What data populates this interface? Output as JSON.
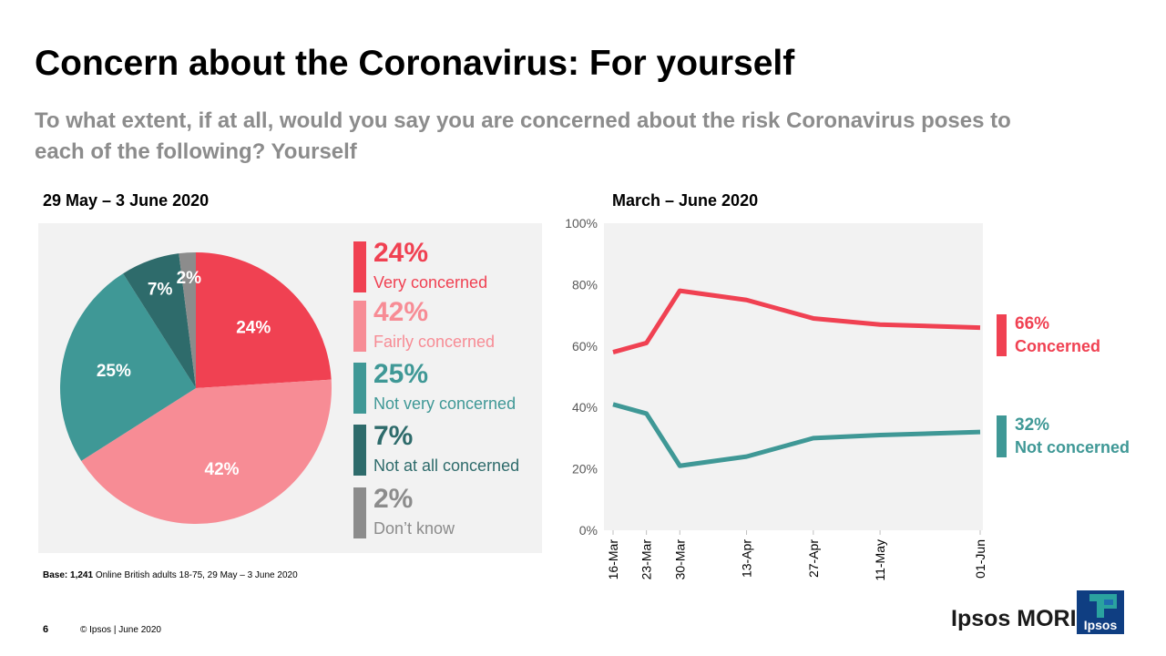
{
  "title": "Concern about the Coronavirus: For yourself",
  "subtitle": "To what extent, if at all, would you say you are concerned about the risk Coronavirus poses to each of the following? Yourself",
  "left_heading": "29 May – 3 June 2020",
  "right_heading": "March – June 2020",
  "base_note": {
    "bold": "Base:",
    "number": "1,241",
    "text": " Online British adults 18-75, 29 May – 3 June 2020"
  },
  "footer": {
    "page": "6",
    "copyright": "© Ipsos",
    "separator": "|",
    "date": "June 2020"
  },
  "brand": {
    "name": "Ipsos MORI",
    "logo_text": "Ipsos",
    "logo_color": "#0f3e82",
    "logo_accent": "#2aa39f"
  },
  "colors": {
    "very_concerned": "#f04152",
    "fairly_concerned": "#f78c95",
    "not_very_concerned": "#3f9896",
    "not_at_all_concerned": "#2e6b6b",
    "dont_know": "#8c8c8c",
    "panel_bg": "#f2f2f2"
  },
  "chart_data": [
    {
      "type": "pie",
      "title": "29 May – 3 June 2020",
      "slices": [
        {
          "label": "Very concerned",
          "value": 24,
          "display": "24%",
          "color": "#f04152"
        },
        {
          "label": "Fairly concerned",
          "value": 42,
          "display": "42%",
          "color": "#f78c95"
        },
        {
          "label": "Not very concerned",
          "value": 25,
          "display": "25%",
          "color": "#3f9896"
        },
        {
          "label": "Not at all concerned",
          "value": 7,
          "display": "7%",
          "color": "#2e6b6b"
        },
        {
          "label": "Don’t know",
          "value": 2,
          "display": "2%",
          "color": "#8c8c8c"
        }
      ],
      "legend_position": "right"
    },
    {
      "type": "line",
      "title": "March – June 2020",
      "x": [
        "16-Mar",
        "23-Mar",
        "30-Mar",
        "13-Apr",
        "27-Apr",
        "11-May",
        "01-Jun"
      ],
      "x_dates": [
        "2020-03-16",
        "2020-03-23",
        "2020-03-30",
        "2020-04-13",
        "2020-04-27",
        "2020-05-11",
        "2020-06-01"
      ],
      "series": [
        {
          "name": "Concerned",
          "values": [
            58,
            61,
            78,
            75,
            69,
            67,
            66
          ],
          "end_label": "66%",
          "color": "#f04152"
        },
        {
          "name": "Not concerned",
          "values": [
            41,
            38,
            21,
            24,
            30,
            31,
            32
          ],
          "end_label": "32%",
          "color": "#3f9896"
        }
      ],
      "ylim": [
        0,
        100
      ],
      "yticks": [
        "0%",
        "20%",
        "40%",
        "60%",
        "80%",
        "100%"
      ],
      "ytick_values": [
        0,
        20,
        40,
        60,
        80,
        100
      ],
      "grid": false,
      "legend_position": "right"
    }
  ]
}
